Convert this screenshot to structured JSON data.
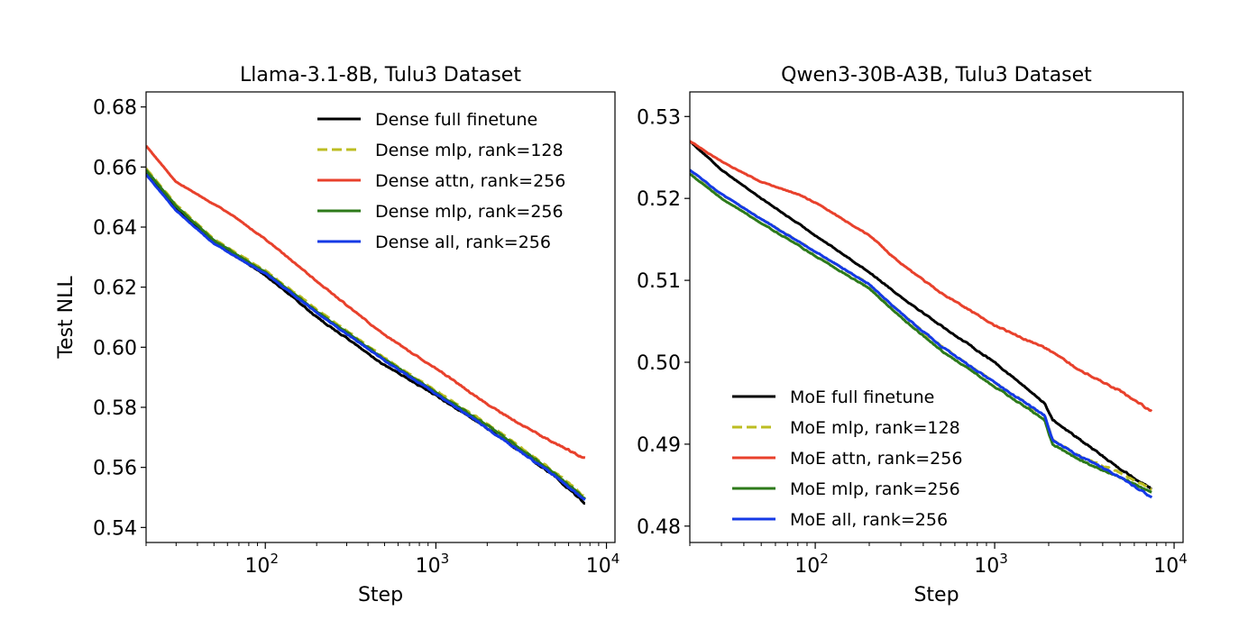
{
  "chart_data": [
    {
      "type": "line",
      "title": "Llama-3.1-8B, Tulu3 Dataset",
      "xlabel": "Step",
      "ylabel": "Test NLL",
      "xscale": "log",
      "xlim": [
        20,
        8000
      ],
      "ylim": [
        0.535,
        0.685
      ],
      "x_ticks": [
        100,
        1000,
        10000
      ],
      "x_tick_labels": [
        {
          "base": "10",
          "exp": "2"
        },
        {
          "base": "10",
          "exp": "3"
        },
        {
          "base": "10",
          "exp": "4"
        }
      ],
      "y_ticks": [
        0.54,
        0.56,
        0.58,
        0.6,
        0.62,
        0.64,
        0.66,
        0.68
      ],
      "y_tick_labels": [
        "0.54",
        "0.56",
        "0.58",
        "0.60",
        "0.62",
        "0.64",
        "0.66",
        "0.68"
      ],
      "grid": false,
      "legend_position": "top-right",
      "series": [
        {
          "name": "Dense full finetune",
          "color": "#000000",
          "dash": "solid",
          "points": [
            [
              20,
              0.658
            ],
            [
              30,
              0.646
            ],
            [
              50,
              0.635
            ],
            [
              100,
              0.624
            ],
            [
              150,
              0.616
            ],
            [
              200,
              0.61
            ],
            [
              300,
              0.603
            ],
            [
              500,
              0.594
            ],
            [
              1000,
              0.584
            ],
            [
              2000,
              0.573
            ],
            [
              3000,
              0.566
            ],
            [
              5000,
              0.557
            ],
            [
              7500,
              0.548
            ]
          ]
        },
        {
          "name": "Dense mlp, rank=128",
          "color": "#bcbd22",
          "dash": "dashed",
          "points": [
            [
              20,
              0.6595
            ],
            [
              30,
              0.6475
            ],
            [
              50,
              0.636
            ],
            [
              100,
              0.6255
            ],
            [
              150,
              0.618
            ],
            [
              200,
              0.6125
            ],
            [
              300,
              0.6055
            ],
            [
              500,
              0.5965
            ],
            [
              1000,
              0.5855
            ],
            [
              2000,
              0.5745
            ],
            [
              3000,
              0.5675
            ],
            [
              5000,
              0.5585
            ],
            [
              7500,
              0.55
            ]
          ]
        },
        {
          "name": "Dense attn, rank=256",
          "color": "#e8412c",
          "dash": "solid",
          "points": [
            [
              20,
              0.667
            ],
            [
              30,
              0.655
            ],
            [
              60,
              0.645
            ],
            [
              100,
              0.636
            ],
            [
              200,
              0.622
            ],
            [
              300,
              0.614
            ],
            [
              500,
              0.604
            ],
            [
              1000,
              0.593
            ],
            [
              2000,
              0.581
            ],
            [
              3000,
              0.575
            ],
            [
              5000,
              0.568
            ],
            [
              7500,
              0.563
            ]
          ]
        },
        {
          "name": "Dense mlp, rank=256",
          "color": "#2d7a1a",
          "dash": "solid",
          "points": [
            [
              20,
              0.659
            ],
            [
              30,
              0.647
            ],
            [
              50,
              0.6355
            ],
            [
              100,
              0.625
            ],
            [
              150,
              0.6175
            ],
            [
              200,
              0.612
            ],
            [
              300,
              0.605
            ],
            [
              500,
              0.596
            ],
            [
              1000,
              0.585
            ],
            [
              2000,
              0.574
            ],
            [
              3000,
              0.567
            ],
            [
              5000,
              0.558
            ],
            [
              7500,
              0.5495
            ]
          ]
        },
        {
          "name": "Dense all, rank=256",
          "color": "#1439e6",
          "dash": "solid",
          "points": [
            [
              20,
              0.6575
            ],
            [
              30,
              0.6455
            ],
            [
              50,
              0.6345
            ],
            [
              100,
              0.6245
            ],
            [
              150,
              0.617
            ],
            [
              200,
              0.6115
            ],
            [
              300,
              0.6045
            ],
            [
              500,
              0.5955
            ],
            [
              1000,
              0.5845
            ],
            [
              2000,
              0.573
            ],
            [
              3000,
              0.566
            ],
            [
              5000,
              0.557
            ],
            [
              7500,
              0.549
            ]
          ]
        }
      ]
    },
    {
      "type": "line",
      "title": "Qwen3-30B-A3B, Tulu3 Dataset",
      "xlabel": "Step",
      "ylabel": "",
      "xscale": "log",
      "xlim": [
        20,
        8000
      ],
      "ylim": [
        0.478,
        0.533
      ],
      "x_ticks": [
        100,
        1000,
        10000
      ],
      "x_tick_labels": [
        {
          "base": "10",
          "exp": "2"
        },
        {
          "base": "10",
          "exp": "3"
        },
        {
          "base": "10",
          "exp": "4"
        }
      ],
      "y_ticks": [
        0.48,
        0.49,
        0.5,
        0.51,
        0.52,
        0.53
      ],
      "y_tick_labels": [
        "0.48",
        "0.49",
        "0.50",
        "0.51",
        "0.52",
        "0.53"
      ],
      "grid": false,
      "legend_position": "bottom-left",
      "series": [
        {
          "name": "MoE full finetune",
          "color": "#000000",
          "dash": "solid",
          "points": [
            [
              20,
              0.527
            ],
            [
              30,
              0.5235
            ],
            [
              50,
              0.52
            ],
            [
              100,
              0.5155
            ],
            [
              200,
              0.511
            ],
            [
              300,
              0.508
            ],
            [
              500,
              0.5045
            ],
            [
              1000,
              0.5
            ],
            [
              1900,
              0.495
            ],
            [
              2100,
              0.493
            ],
            [
              3000,
              0.4905
            ],
            [
              5000,
              0.487
            ],
            [
              7500,
              0.4845
            ]
          ]
        },
        {
          "name": "MoE mlp, rank=128",
          "color": "#bcbd22",
          "dash": "dashed",
          "points": [
            [
              20,
              0.5235
            ],
            [
              30,
              0.5205
            ],
            [
              50,
              0.5175
            ],
            [
              100,
              0.5135
            ],
            [
              200,
              0.5095
            ],
            [
              300,
              0.506
            ],
            [
              500,
              0.502
            ],
            [
              1000,
              0.4975
            ],
            [
              1900,
              0.4935
            ],
            [
              2100,
              0.4905
            ],
            [
              3000,
              0.4885
            ],
            [
              5000,
              0.4865
            ],
            [
              7500,
              0.4845
            ]
          ]
        },
        {
          "name": "MoE attn, rank=256",
          "color": "#e8412c",
          "dash": "solid",
          "points": [
            [
              20,
              0.527
            ],
            [
              30,
              0.5245
            ],
            [
              50,
              0.522
            ],
            [
              80,
              0.5205
            ],
            [
              100,
              0.5195
            ],
            [
              200,
              0.5155
            ],
            [
              300,
              0.512
            ],
            [
              500,
              0.5085
            ],
            [
              1000,
              0.5045
            ],
            [
              2000,
              0.5015
            ],
            [
              3000,
              0.499
            ],
            [
              5000,
              0.4965
            ],
            [
              7500,
              0.494
            ]
          ]
        },
        {
          "name": "MoE mlp, rank=256",
          "color": "#2d7a1a",
          "dash": "solid",
          "points": [
            [
              20,
              0.523
            ],
            [
              30,
              0.52
            ],
            [
              50,
              0.517
            ],
            [
              100,
              0.513
            ],
            [
              200,
              0.509
            ],
            [
              300,
              0.5055
            ],
            [
              500,
              0.5015
            ],
            [
              1000,
              0.497
            ],
            [
              1900,
              0.493
            ],
            [
              2100,
              0.49
            ],
            [
              3000,
              0.488
            ],
            [
              5000,
              0.486
            ],
            [
              7500,
              0.484
            ]
          ]
        },
        {
          "name": "MoE all, rank=256",
          "color": "#1439e6",
          "dash": "solid",
          "points": [
            [
              20,
              0.5235
            ],
            [
              30,
              0.5205
            ],
            [
              50,
              0.5175
            ],
            [
              100,
              0.5135
            ],
            [
              200,
              0.5095
            ],
            [
              300,
              0.506
            ],
            [
              500,
              0.502
            ],
            [
              1000,
              0.4975
            ],
            [
              1900,
              0.4935
            ],
            [
              2100,
              0.4905
            ],
            [
              3000,
              0.4885
            ],
            [
              5000,
              0.486
            ],
            [
              7500,
              0.4835
            ]
          ]
        }
      ]
    }
  ]
}
